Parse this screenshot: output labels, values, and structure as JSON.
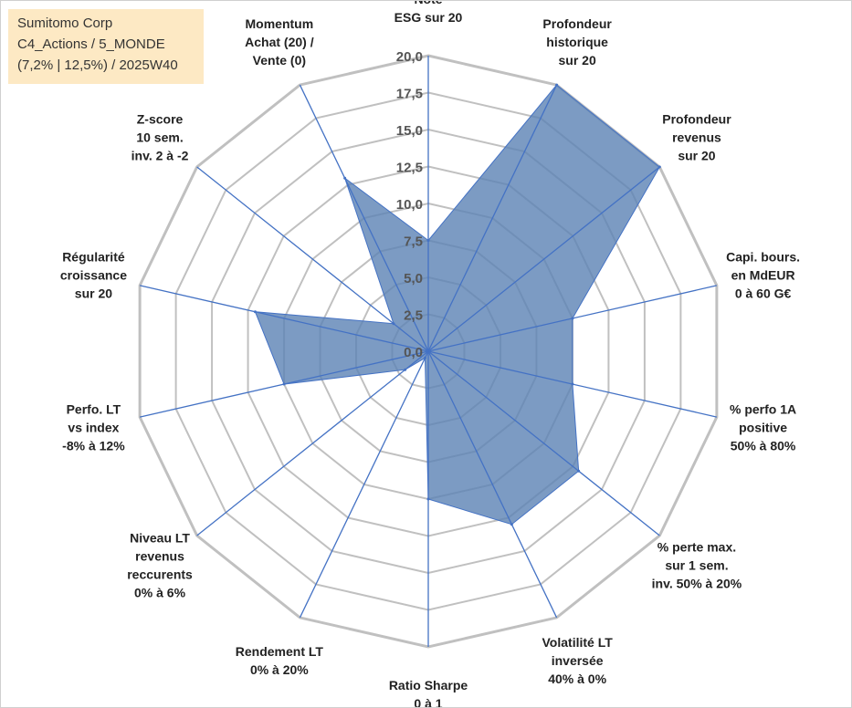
{
  "info": {
    "company": "Sumitomo Corp",
    "portfolio": "C4_Actions / 5_MONDE",
    "stats": "(7,2% | 12,5%) / 2025W40"
  },
  "colors": {
    "fill": "#5b82b4",
    "stroke": "#4472c4",
    "grid": "#c0c0c0",
    "info_bg": "#fde9c4"
  },
  "chart_data": {
    "type": "radar",
    "range": [
      0,
      20
    ],
    "tick_step": 2.5,
    "ticks": [
      "0,0",
      "2,5",
      "5,0",
      "7,5",
      "10,0",
      "12,5",
      "15,0",
      "17,5",
      "20,0"
    ],
    "grid": true,
    "axes": [
      [
        "Note",
        "ESG sur 20"
      ],
      [
        "Profondeur",
        "historique",
        "sur 20"
      ],
      [
        "Profondeur",
        "revenus",
        "sur 20"
      ],
      [
        "Capi. bours.",
        "en MdEUR",
        "0 à 60 G€"
      ],
      [
        "% perfo 1A",
        "positive",
        "50% à 80%"
      ],
      [
        "% perte max.",
        "sur 1 sem.",
        "inv. 50% à 20%"
      ],
      [
        "Volatilité LT",
        "inversée",
        "40% à 0%"
      ],
      [
        "Ratio Sharpe",
        "0 à 1"
      ],
      [
        "Rendement LT",
        "0% à 20%"
      ],
      [
        "Niveau LT",
        "revenus",
        "reccurents",
        "0% à 6%"
      ],
      [
        "Perfo. LT",
        "vs index",
        "-8% à 12%"
      ],
      [
        "Régularité",
        "croissance",
        "sur 20"
      ],
      [
        "Z-score",
        "10 sem.",
        "inv. 2 à -2"
      ],
      [
        "Momentum",
        "Achat (20) /",
        "Vente (0)"
      ]
    ],
    "values": [
      7.5,
      20,
      20,
      10,
      10,
      13,
      13,
      10,
      0.5,
      2,
      10,
      12,
      3,
      13
    ]
  }
}
